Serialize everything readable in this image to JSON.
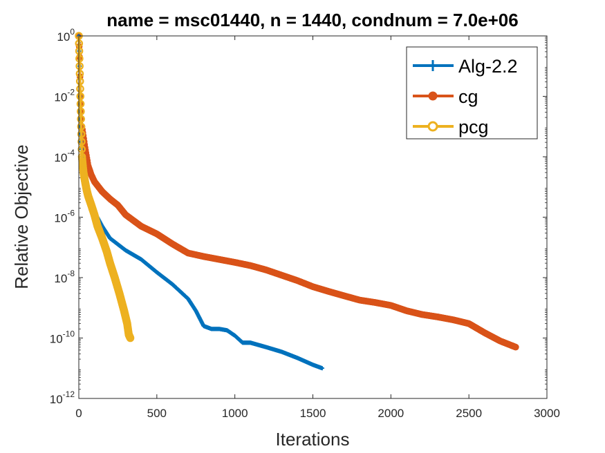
{
  "chart_data": {
    "type": "line",
    "title": "name = msc01440, n = 1440, condnum = 7.0e+06",
    "xlabel": "Iterations",
    "ylabel": "Relative Objective",
    "xlim": [
      0,
      3000
    ],
    "ylim": [
      1e-12,
      1
    ],
    "yscale": "log",
    "xticks": [
      0,
      500,
      1000,
      1500,
      2000,
      2500,
      3000
    ],
    "yticks": [
      {
        "base": "10",
        "exp": "0",
        "value": 1
      },
      {
        "base": "10",
        "exp": "-2",
        "value": 0.01
      },
      {
        "base": "10",
        "exp": "-4",
        "value": 0.0001
      },
      {
        "base": "10",
        "exp": "-6",
        "value": 1e-06
      },
      {
        "base": "10",
        "exp": "-8",
        "value": 1e-08
      },
      {
        "base": "10",
        "exp": "-10",
        "value": 1e-10
      },
      {
        "base": "10",
        "exp": "-12",
        "value": 1e-12
      }
    ],
    "legend_position": "top-right",
    "series": [
      {
        "name": "Alg-2.2",
        "color": "#0072BD",
        "marker": "plus",
        "x": [
          0,
          5,
          10,
          20,
          40,
          60,
          80,
          100,
          150,
          200,
          300,
          400,
          500,
          600,
          700,
          750,
          800,
          850,
          900,
          950,
          1000,
          1050,
          1100,
          1200,
          1300,
          1400,
          1500,
          1560
        ],
        "y": [
          1,
          0.1,
          0.001,
          0.0001,
          1.5e-05,
          6e-06,
          3e-06,
          1.5e-06,
          5e-07,
          2e-07,
          8e-08,
          4e-08,
          1.5e-08,
          6e-09,
          2e-09,
          8e-10,
          2.5e-10,
          2e-10,
          2e-10,
          1.8e-10,
          1.2e-10,
          7e-11,
          7e-11,
          5e-11,
          3.5e-11,
          2.2e-11,
          1.3e-11,
          1e-11
        ]
      },
      {
        "name": "cg",
        "color": "#D95319",
        "marker": "dot",
        "x": [
          0,
          5,
          10,
          20,
          40,
          60,
          80,
          100,
          150,
          200,
          250,
          300,
          400,
          500,
          600,
          700,
          800,
          900,
          1000,
          1100,
          1200,
          1300,
          1400,
          1500,
          1600,
          1700,
          1800,
          1900,
          2000,
          2100,
          2200,
          2300,
          2400,
          2500,
          2600,
          2700,
          2800
        ],
        "y": [
          1,
          0.2,
          0.01,
          0.001,
          0.0002,
          5e-05,
          2.5e-05,
          1.5e-05,
          7e-06,
          4e-06,
          2.5e-06,
          1.2e-06,
          5e-07,
          2.8e-07,
          1.3e-07,
          6.5e-08,
          5e-08,
          4e-08,
          3.2e-08,
          2.5e-08,
          1.8e-08,
          1.2e-08,
          8e-09,
          5e-09,
          3.5e-09,
          2.5e-09,
          1.8e-09,
          1.5e-09,
          1.2e-09,
          8e-10,
          6e-10,
          5e-10,
          4e-10,
          3e-10,
          1.5e-10,
          8e-11,
          5e-11
        ]
      },
      {
        "name": "pcg",
        "color": "#EDB120",
        "marker": "circle",
        "x": [
          0,
          5,
          10,
          15,
          20,
          30,
          40,
          50,
          60,
          80,
          100,
          120,
          150,
          180,
          200,
          230,
          260,
          290,
          310,
          320,
          330
        ],
        "y": [
          1,
          0.1,
          0.01,
          0.001,
          0.0001,
          3e-05,
          1.5e-05,
          8e-06,
          5e-06,
          2.5e-06,
          1.2e-06,
          5e-07,
          2e-07,
          7e-08,
          3e-08,
          1e-08,
          3e-09,
          8e-10,
          3e-10,
          1.3e-10,
          1e-10
        ]
      }
    ]
  }
}
